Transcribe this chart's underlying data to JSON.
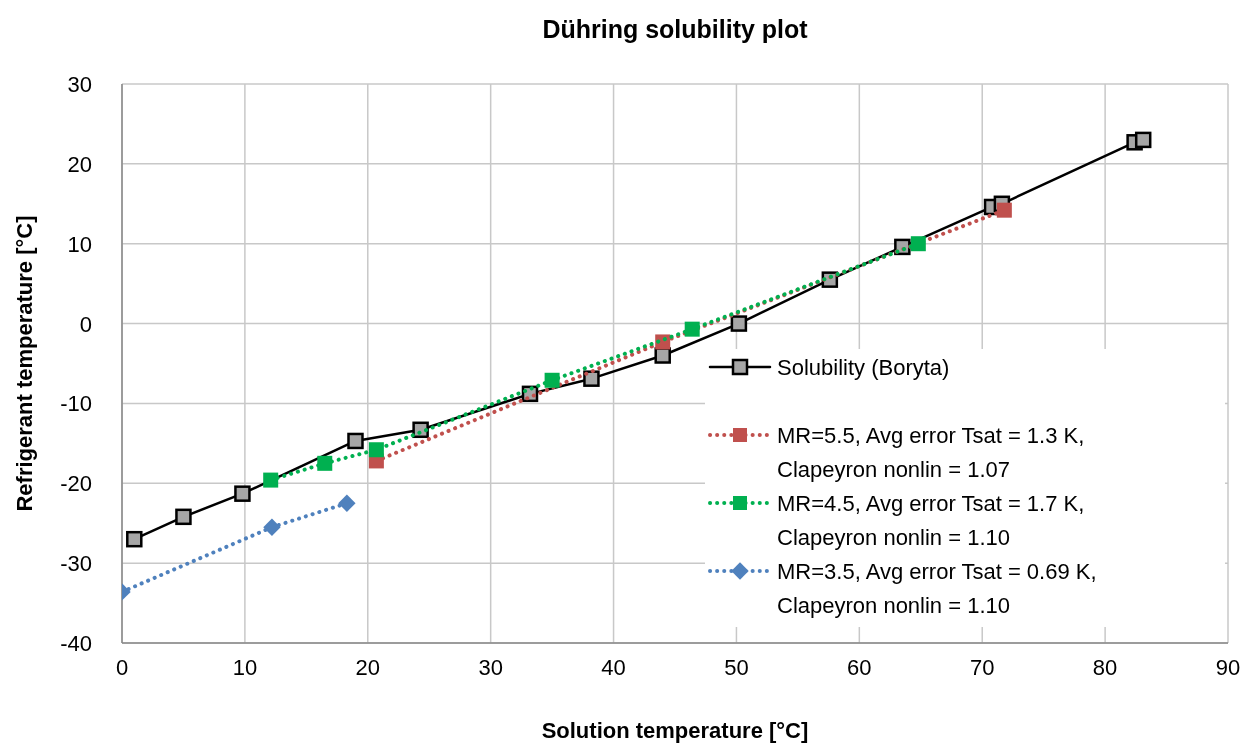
{
  "chart_data": {
    "type": "line",
    "title": "Dühring solubility plot",
    "xlabel": "Solution temperature [°C]",
    "ylabel": "Refrigerant temperature [°C]",
    "xlim": [
      0,
      90
    ],
    "xticks": [
      0,
      10,
      20,
      30,
      40,
      50,
      60,
      70,
      80,
      90
    ],
    "ylim": [
      -40,
      30
    ],
    "yticks": [
      -40,
      -30,
      -20,
      -10,
      0,
      10,
      20,
      30
    ],
    "grid": true,
    "legend": "bottom right",
    "series": [
      {
        "name": "Solubility (Boryta)",
        "color": "#000000",
        "marker": "square",
        "line_style": "solid",
        "x": [
          1,
          5,
          9.8,
          19,
          24.3,
          33.2,
          38.2,
          44,
          50.2,
          57.6,
          63.5,
          70.8,
          71.6,
          82.4,
          83.1
        ],
        "values": [
          -27,
          -24.2,
          -21.3,
          -14.7,
          -13.3,
          -8.8,
          -6.9,
          -4,
          0,
          5.5,
          9.6,
          14.6,
          15,
          22.7,
          23
        ]
      },
      {
        "name": "MR=5.5, Avg error Tsat = 1.3 K, Clapeyron nonlin = 1.07",
        "color": "#c0504d",
        "marker": "square",
        "line_style": "dotted",
        "x": [
          20.7,
          44,
          71.8
        ],
        "values": [
          -17.2,
          -2.3,
          14.2
        ]
      },
      {
        "name": "MR=4.5, Avg error Tsat = 1.7 K, Clapeyron nonlin = 1.10",
        "color": "#00b050",
        "marker": "square",
        "line_style": "dotted",
        "x": [
          12.1,
          16.5,
          20.7,
          35,
          46.4,
          64.8
        ],
        "values": [
          -19.6,
          -17.5,
          -15.8,
          -7.1,
          -0.7,
          10
        ]
      },
      {
        "name": "MR=3.5, Avg error Tsat = 0.69 K, Clapeyron nonlin = 1.10",
        "color": "#4f81bd",
        "marker": "diamond",
        "line_style": "dotted",
        "x": [
          0,
          12.2,
          18.3
        ],
        "values": [
          -33.6,
          -25.5,
          -22.5
        ]
      }
    ]
  }
}
